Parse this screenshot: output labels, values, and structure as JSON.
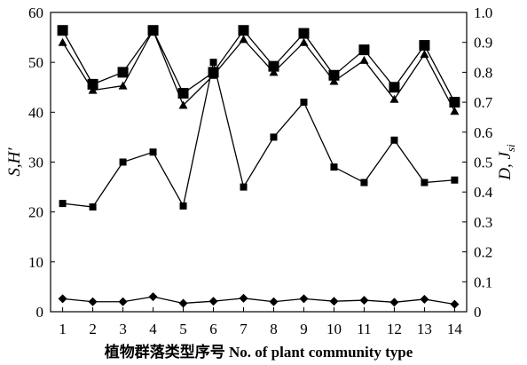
{
  "chart_data": {
    "type": "line",
    "x": [
      1,
      2,
      3,
      4,
      5,
      6,
      7,
      8,
      9,
      10,
      11,
      12,
      13,
      14
    ],
    "xlabel": "植物群落类型序号  No. of plant community type",
    "ylabel_left": "S, H′",
    "ylabel_right": "D, Jsi",
    "ylim_left": [
      0,
      60
    ],
    "ylim_right": [
      0,
      1.0
    ],
    "yticks_left": [
      0,
      10,
      20,
      30,
      40,
      50,
      60
    ],
    "yticks_right": [
      0,
      0.1,
      0.2,
      0.3,
      0.4,
      0.5,
      0.6,
      0.7,
      0.8,
      0.9,
      1.0
    ],
    "grid": false,
    "series": [
      {
        "marker": "square",
        "axis": "left",
        "values": [
          21.7,
          21.0,
          30.0,
          32.0,
          21.2,
          50.0,
          25.0,
          35.0,
          42.0,
          29.0,
          25.9,
          34.4,
          25.9,
          26.4
        ]
      },
      {
        "marker": "diamond",
        "axis": "left",
        "values": [
          2.6,
          2.0,
          2.0,
          3.0,
          1.7,
          2.1,
          2.7,
          2.0,
          2.6,
          2.1,
          2.3,
          1.9,
          2.5,
          1.5
        ]
      },
      {
        "marker": "square-large",
        "axis": "right",
        "values": [
          0.94,
          0.76,
          0.8,
          0.94,
          0.73,
          0.8,
          0.94,
          0.82,
          0.93,
          0.79,
          0.875,
          0.75,
          0.89,
          0.7
        ]
      },
      {
        "marker": "triangle",
        "axis": "right",
        "values": [
          0.9,
          0.74,
          0.755,
          0.94,
          0.69,
          0.79,
          0.91,
          0.8,
          0.9,
          0.77,
          0.84,
          0.71,
          0.86,
          0.67
        ]
      }
    ]
  }
}
